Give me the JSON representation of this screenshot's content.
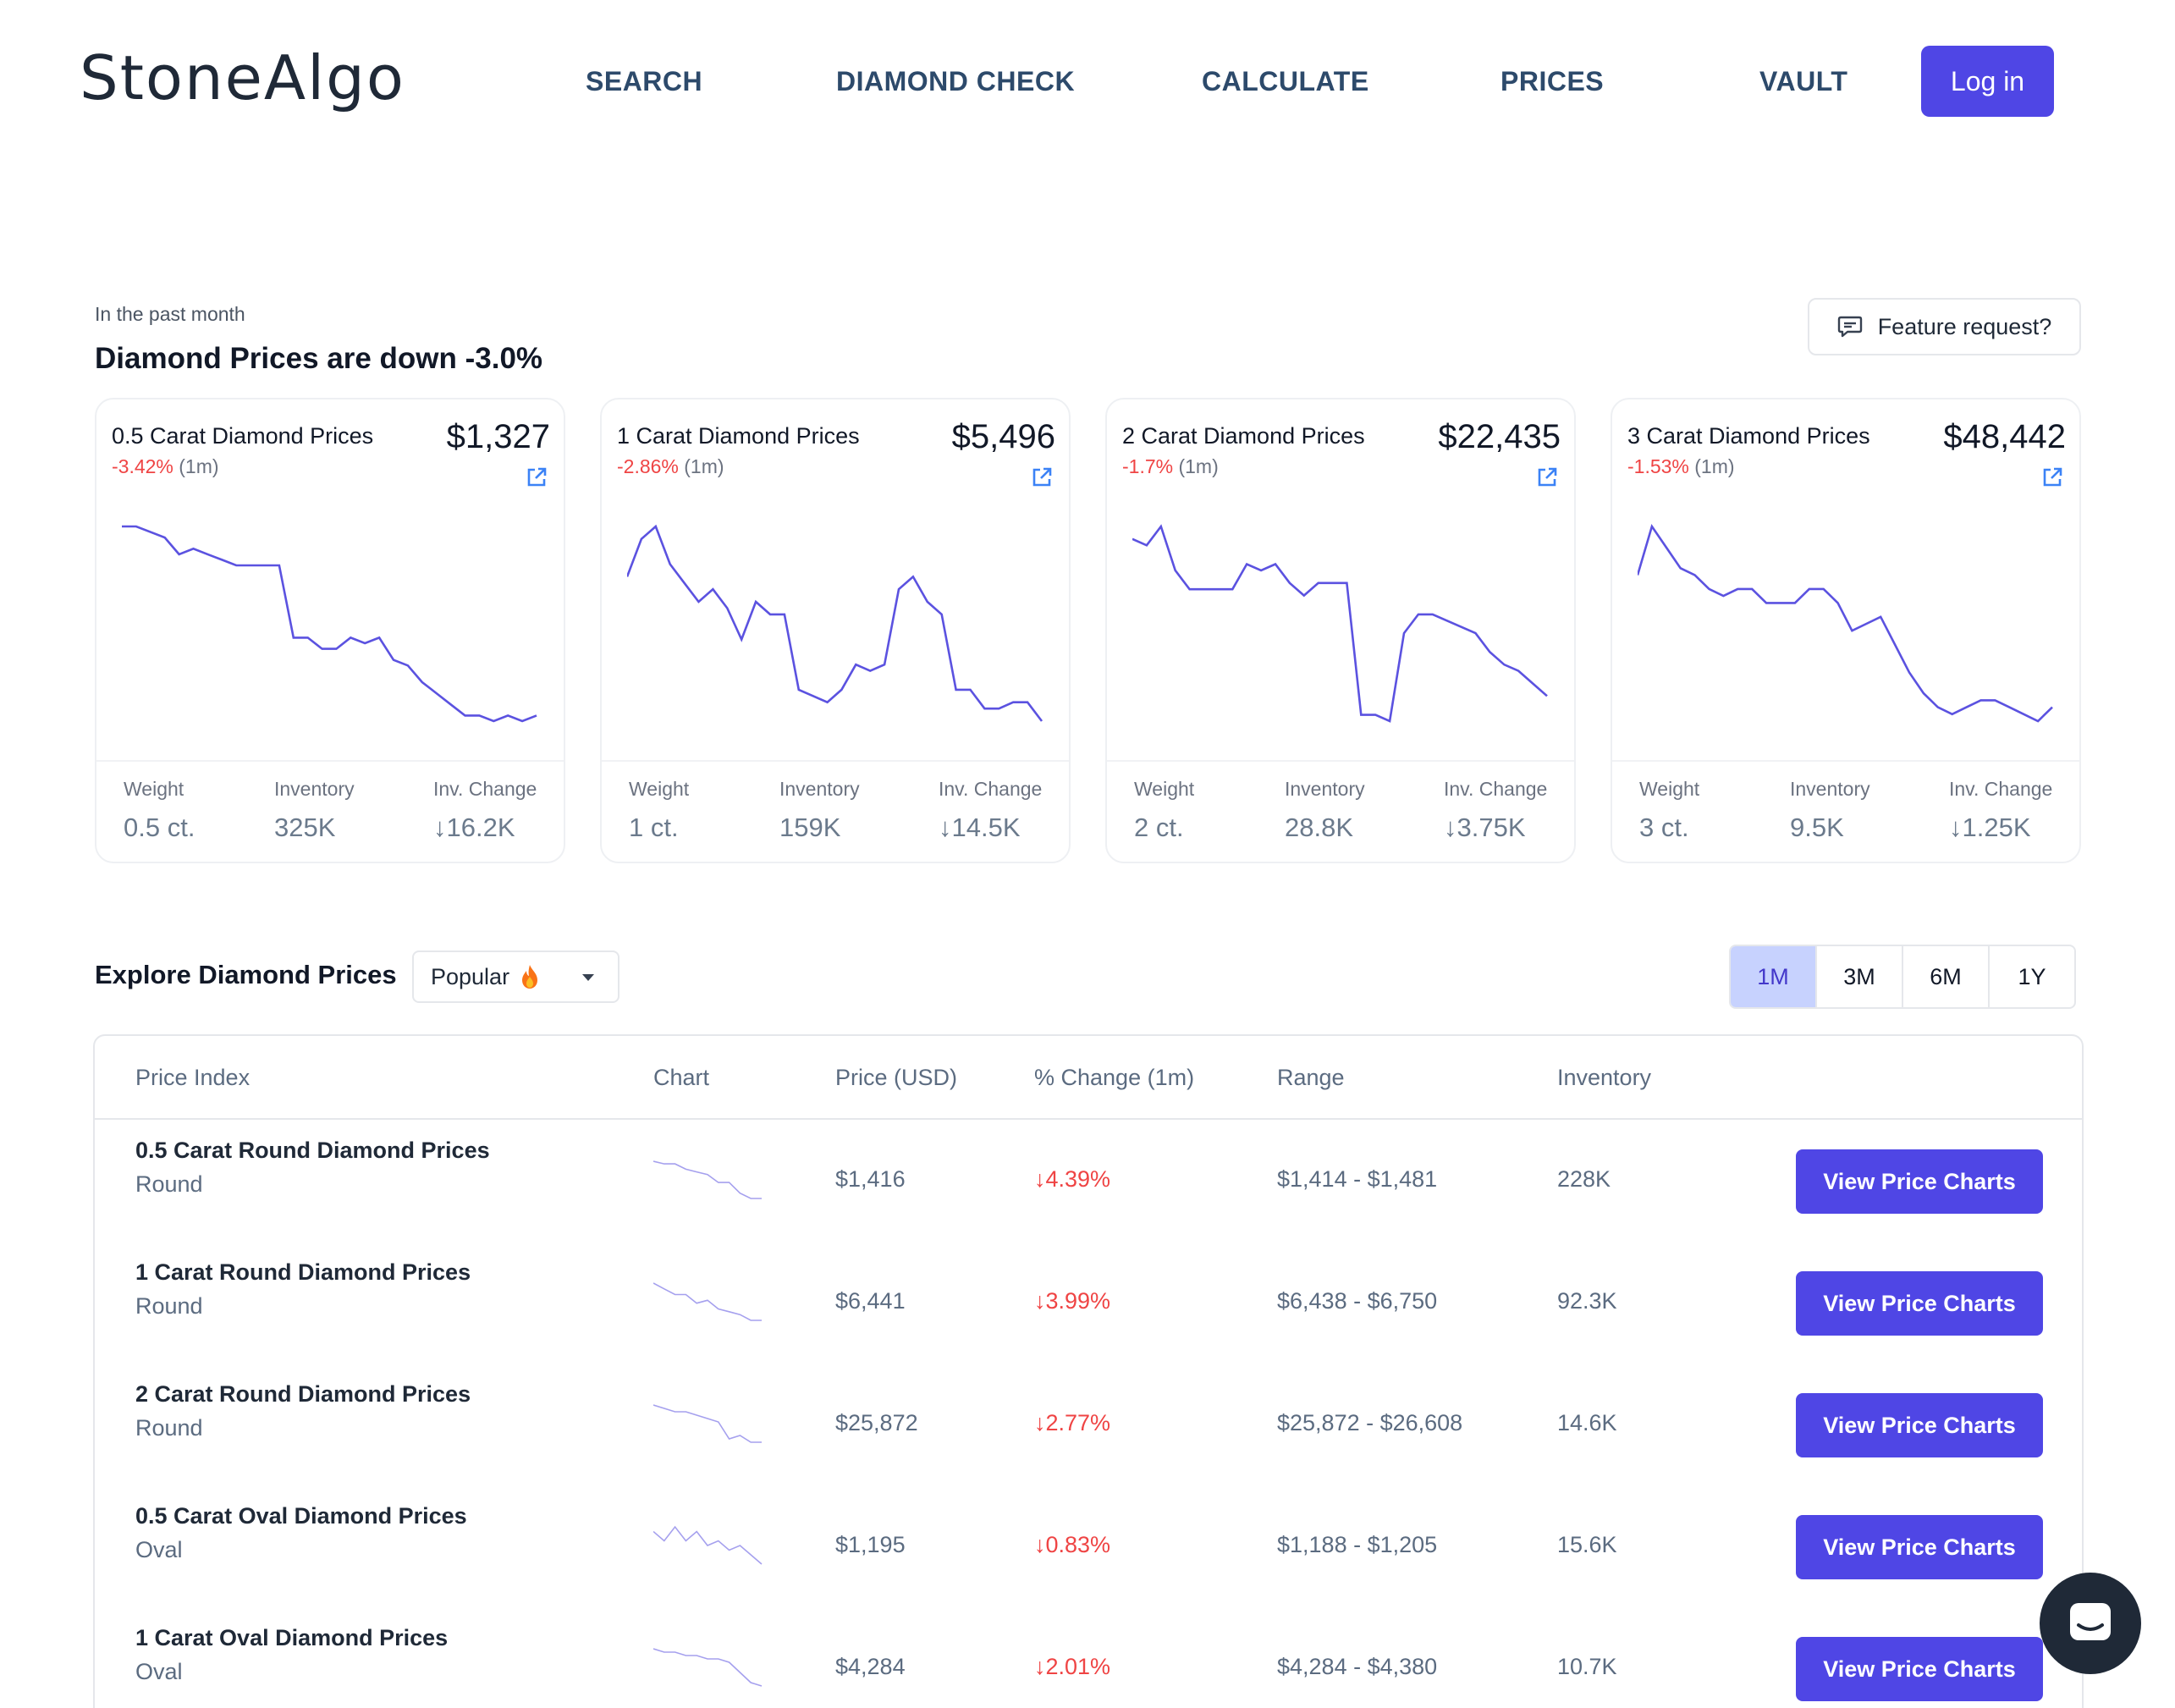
{
  "header": {
    "logo": "StoneAlgo",
    "nav": [
      {
        "label": "SEARCH"
      },
      {
        "label": "DIAMOND CHECK"
      },
      {
        "label": "CALCULATE"
      },
      {
        "label": "PRICES"
      },
      {
        "label": "VAULT"
      }
    ],
    "login_label": "Log in"
  },
  "summary": {
    "caption": "In the past month",
    "headline": "Diamond Prices are down -3.0%",
    "feature_label": "Feature request?"
  },
  "stat_labels": {
    "weight": "Weight",
    "inventory": "Inventory",
    "inv_change": "Inv. Change"
  },
  "cards": [
    {
      "title": "0.5 Carat Diamond Prices",
      "price": "$1,327",
      "change": "-3.42%",
      "period": "(1m)",
      "weight": "0.5 ct.",
      "inventory": "325K",
      "inv_change": "↓16.2K",
      "series": [
        100,
        100,
        99,
        98,
        95,
        96,
        95,
        94,
        93,
        93,
        93,
        93,
        80,
        80,
        78,
        78,
        80,
        79,
        80,
        76,
        75,
        72,
        70,
        68,
        66,
        66,
        65,
        66,
        65,
        66
      ]
    },
    {
      "title": "1 Carat Diamond Prices",
      "price": "$5,496",
      "change": "-2.86%",
      "period": "(1m)",
      "weight": "1 ct.",
      "inventory": "159K",
      "inv_change": "↓14.5K",
      "series": [
        90,
        96,
        98,
        92,
        89,
        86,
        88,
        85,
        80,
        86,
        84,
        84,
        72,
        71,
        70,
        72,
        76,
        75,
        76,
        88,
        90,
        86,
        84,
        72,
        72,
        69,
        69,
        70,
        70,
        67
      ]
    },
    {
      "title": "2 Carat Diamond Prices",
      "price": "$22,435",
      "change": "-1.7%",
      "period": "(1m)",
      "weight": "2 ct.",
      "inventory": "28.8K",
      "inv_change": "↓3.75K",
      "series": [
        95,
        94,
        97,
        90,
        87,
        87,
        87,
        87,
        91,
        90,
        91,
        88,
        86,
        88,
        88,
        88,
        67,
        67,
        66,
        80,
        83,
        83,
        82,
        81,
        80,
        77,
        75,
        74,
        72,
        70
      ]
    },
    {
      "title": "3 Carat Diamond Prices",
      "price": "$48,442",
      "change": "-1.53%",
      "period": "(1m)",
      "weight": "3 ct.",
      "inventory": "9.5K",
      "inv_change": "↓1.25K",
      "series": [
        88,
        95,
        92,
        89,
        88,
        86,
        85,
        86,
        86,
        84,
        84,
        84,
        86,
        86,
        84,
        80,
        81,
        82,
        78,
        74,
        71,
        69,
        68,
        69,
        70,
        70,
        69,
        68,
        67,
        69
      ]
    }
  ],
  "explore": {
    "title": "Explore Diamond Prices",
    "filter_label": "Popular",
    "ranges": [
      {
        "label": "1M",
        "active": true
      },
      {
        "label": "3M",
        "active": false
      },
      {
        "label": "6M",
        "active": false
      },
      {
        "label": "1Y",
        "active": false
      }
    ]
  },
  "table": {
    "headers": {
      "index": "Price Index",
      "chart": "Chart",
      "price": "Price (USD)",
      "change": "% Change (1m)",
      "range": "Range",
      "inventory": "Inventory"
    },
    "button_label": "View Price Charts",
    "rows": [
      {
        "title": "0.5 Carat Round Diamond Prices",
        "shape": "Round",
        "price": "$1,416",
        "change": "↓4.39%",
        "range": "$1,414 - $1,481",
        "inventory": "228K",
        "series": [
          100,
          99,
          99,
          97,
          96,
          95,
          92,
          92,
          88,
          86,
          86
        ]
      },
      {
        "title": "1 Carat Round Diamond Prices",
        "shape": "Round",
        "price": "$6,441",
        "change": "↓3.99%",
        "range": "$6,438 - $6,750",
        "inventory": "92.3K",
        "series": [
          100,
          98,
          96,
          96,
          93,
          94,
          91,
          90,
          89,
          87,
          87
        ]
      },
      {
        "title": "2 Carat Round Diamond Prices",
        "shape": "Round",
        "price": "$25,872",
        "change": "↓2.77%",
        "range": "$25,872 - $26,608",
        "inventory": "14.6K",
        "series": [
          100,
          99,
          98,
          98,
          97,
          96,
          95,
          90,
          91,
          89,
          89
        ]
      },
      {
        "title": "0.5 Carat Oval Diamond Prices",
        "shape": "Oval",
        "price": "$1,195",
        "change": "↓0.83%",
        "range": "$1,188 - $1,205",
        "inventory": "15.6K",
        "series": [
          99,
          97,
          100,
          97,
          99,
          96,
          97,
          95,
          96,
          94,
          92
        ]
      },
      {
        "title": "1 Carat Oval Diamond Prices",
        "shape": "Oval",
        "price": "$4,284",
        "change": "↓2.01%",
        "range": "$4,284 - $4,380",
        "inventory": "10.7K",
        "series": [
          100,
          99,
          99,
          98,
          98,
          97,
          97,
          96,
          93,
          90,
          89
        ]
      }
    ]
  },
  "colors": {
    "accent": "#4f46e5",
    "negative": "#ef4444",
    "line": "#5b52e0",
    "spark": "#a5a0ee"
  },
  "icons": {
    "feature": "chat-bubble-icon",
    "link": "external-link-icon",
    "filter": "fire-icon",
    "chat": "chat-widget-icon"
  }
}
